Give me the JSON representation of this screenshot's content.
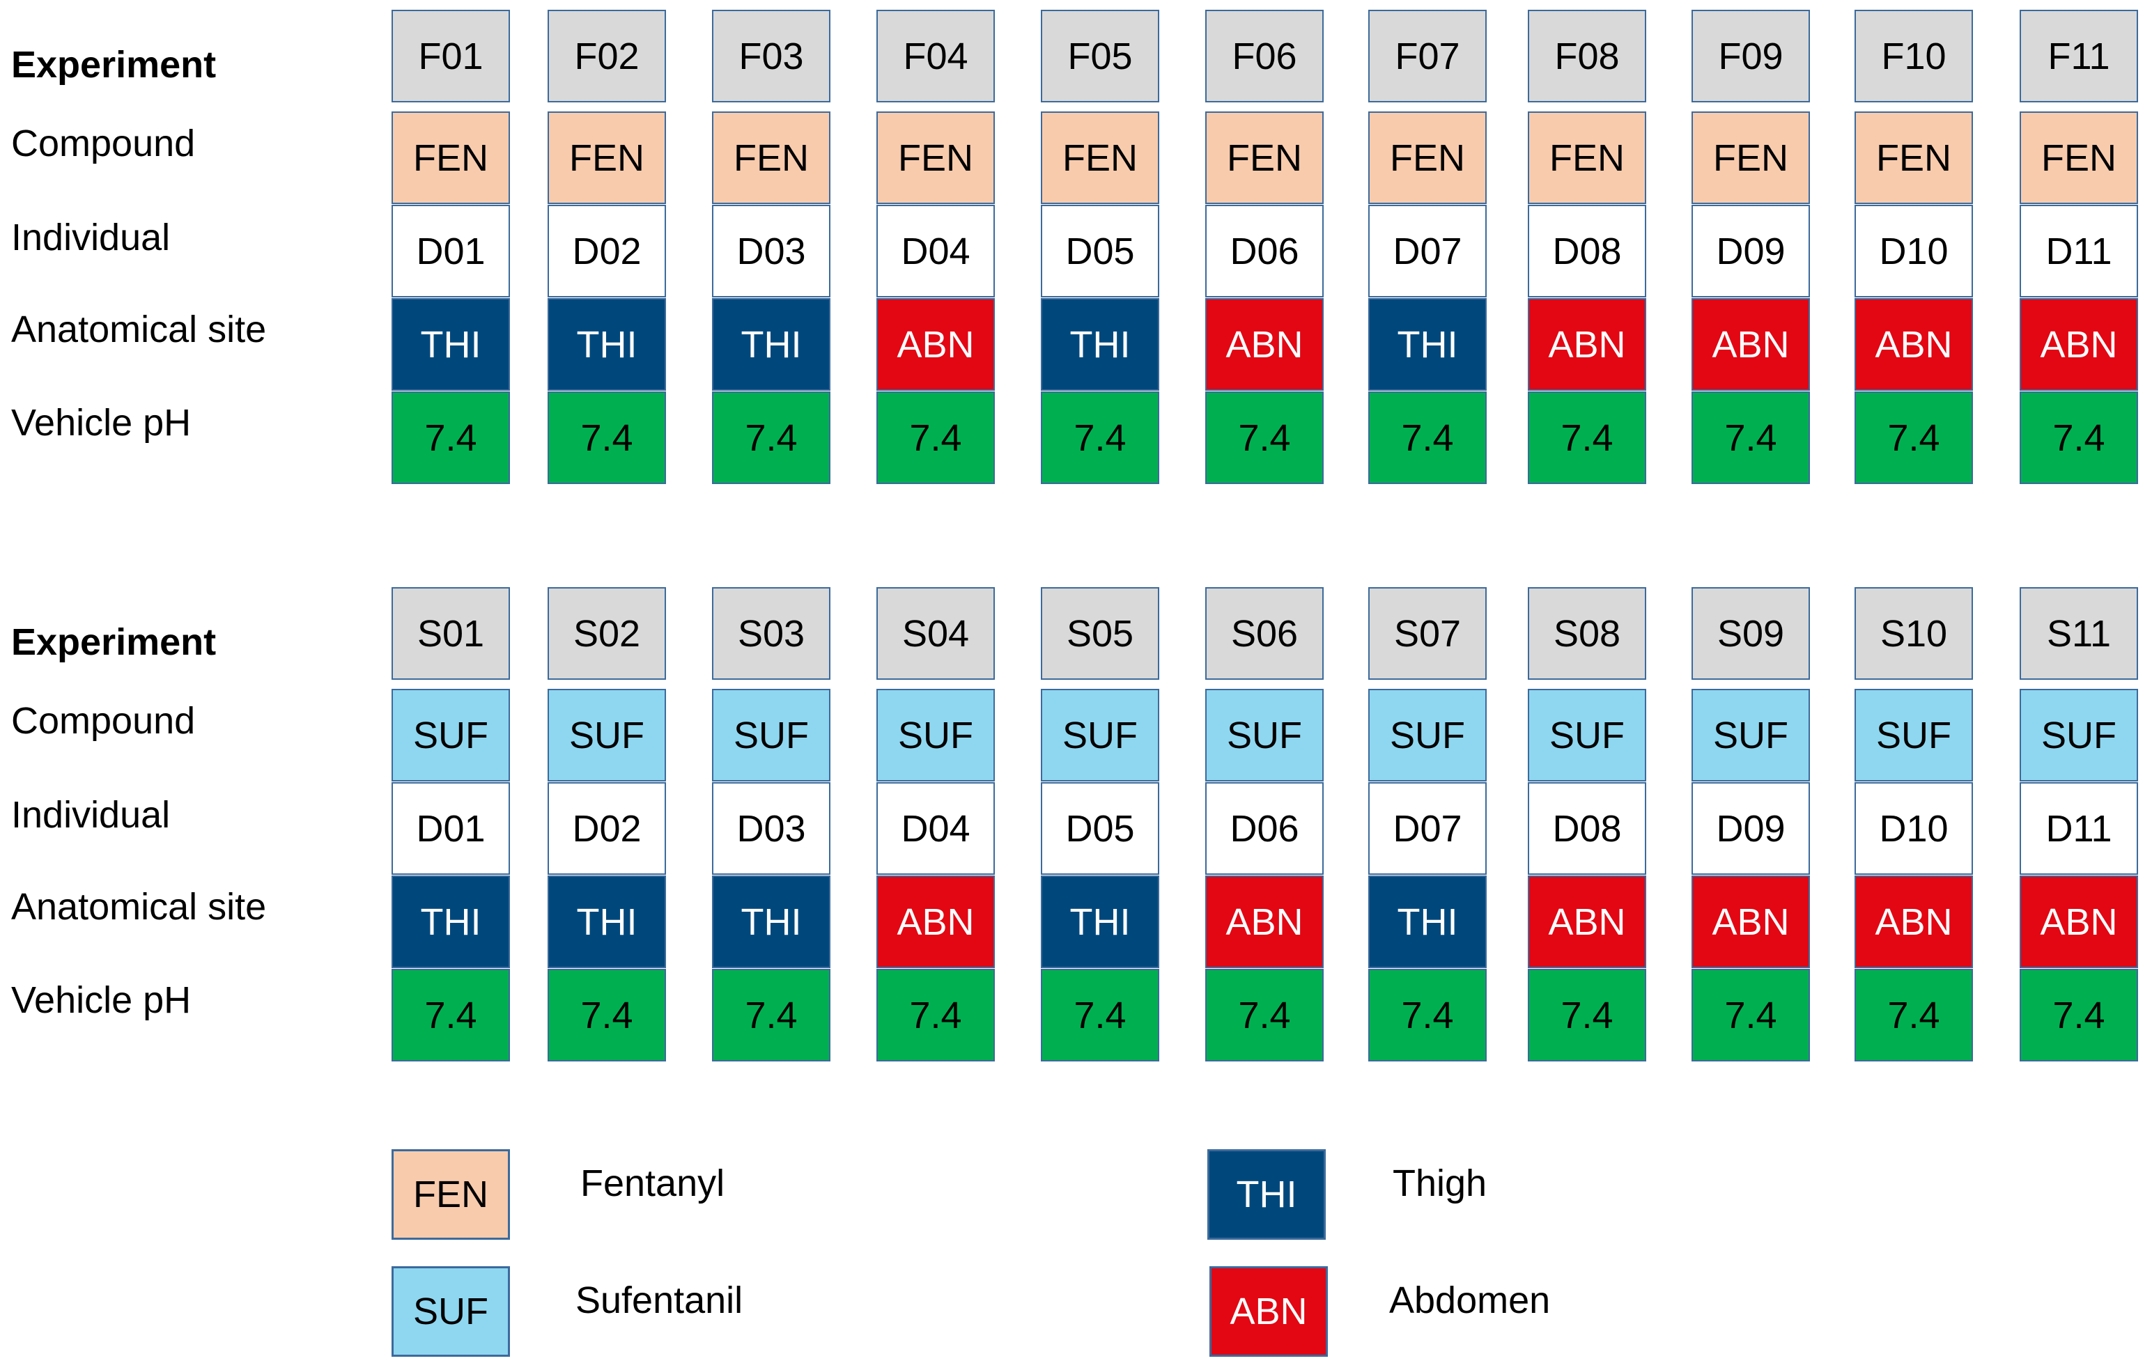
{
  "colors": {
    "experiment": "#d9d9d9",
    "FEN": "#f8cbad",
    "SUF": "#8fd7f0",
    "individual": "#ffffff",
    "THI": "#00487c",
    "ABN": "#e30613",
    "ph": "#00b050",
    "border": "#3c6a9c"
  },
  "row_labels": [
    "Experiment",
    "Compound",
    "Individual",
    "Anatomical site",
    "Vehicle pH"
  ],
  "groups": [
    {
      "columns": [
        {
          "experiment": "F01",
          "compound": "FEN",
          "individual": "D01",
          "site": "THI",
          "ph": "7.4"
        },
        {
          "experiment": "F02",
          "compound": "FEN",
          "individual": "D02",
          "site": "THI",
          "ph": "7.4"
        },
        {
          "experiment": "F03",
          "compound": "FEN",
          "individual": "D03",
          "site": "THI",
          "ph": "7.4"
        },
        {
          "experiment": "F04",
          "compound": "FEN",
          "individual": "D04",
          "site": "ABN",
          "ph": "7.4"
        },
        {
          "experiment": "F05",
          "compound": "FEN",
          "individual": "D05",
          "site": "THI",
          "ph": "7.4"
        },
        {
          "experiment": "F06",
          "compound": "FEN",
          "individual": "D06",
          "site": "ABN",
          "ph": "7.4"
        },
        {
          "experiment": "F07",
          "compound": "FEN",
          "individual": "D07",
          "site": "THI",
          "ph": "7.4"
        },
        {
          "experiment": "F08",
          "compound": "FEN",
          "individual": "D08",
          "site": "ABN",
          "ph": "7.4"
        },
        {
          "experiment": "F09",
          "compound": "FEN",
          "individual": "D09",
          "site": "ABN",
          "ph": "7.4"
        },
        {
          "experiment": "F10",
          "compound": "FEN",
          "individual": "D10",
          "site": "ABN",
          "ph": "7.4"
        },
        {
          "experiment": "F11",
          "compound": "FEN",
          "individual": "D11",
          "site": "ABN",
          "ph": "7.4"
        }
      ]
    },
    {
      "columns": [
        {
          "experiment": "S01",
          "compound": "SUF",
          "individual": "D01",
          "site": "THI",
          "ph": "7.4"
        },
        {
          "experiment": "S02",
          "compound": "SUF",
          "individual": "D02",
          "site": "THI",
          "ph": "7.4"
        },
        {
          "experiment": "S03",
          "compound": "SUF",
          "individual": "D03",
          "site": "THI",
          "ph": "7.4"
        },
        {
          "experiment": "S04",
          "compound": "SUF",
          "individual": "D04",
          "site": "ABN",
          "ph": "7.4"
        },
        {
          "experiment": "S05",
          "compound": "SUF",
          "individual": "D05",
          "site": "THI",
          "ph": "7.4"
        },
        {
          "experiment": "S06",
          "compound": "SUF",
          "individual": "D06",
          "site": "ABN",
          "ph": "7.4"
        },
        {
          "experiment": "S07",
          "compound": "SUF",
          "individual": "D07",
          "site": "THI",
          "ph": "7.4"
        },
        {
          "experiment": "S08",
          "compound": "SUF",
          "individual": "D08",
          "site": "ABN",
          "ph": "7.4"
        },
        {
          "experiment": "S09",
          "compound": "SUF",
          "individual": "D09",
          "site": "ABN",
          "ph": "7.4"
        },
        {
          "experiment": "S10",
          "compound": "SUF",
          "individual": "D10",
          "site": "ABN",
          "ph": "7.4"
        },
        {
          "experiment": "S11",
          "compound": "SUF",
          "individual": "D11",
          "site": "ABN",
          "ph": "7.4"
        }
      ]
    }
  ],
  "legend": [
    {
      "code": "FEN",
      "name": "Fentanyl"
    },
    {
      "code": "SUF",
      "name": "Sufentanil"
    },
    {
      "code": "THI",
      "name": "Thigh"
    },
    {
      "code": "ABN",
      "name": "Abdomen"
    }
  ]
}
